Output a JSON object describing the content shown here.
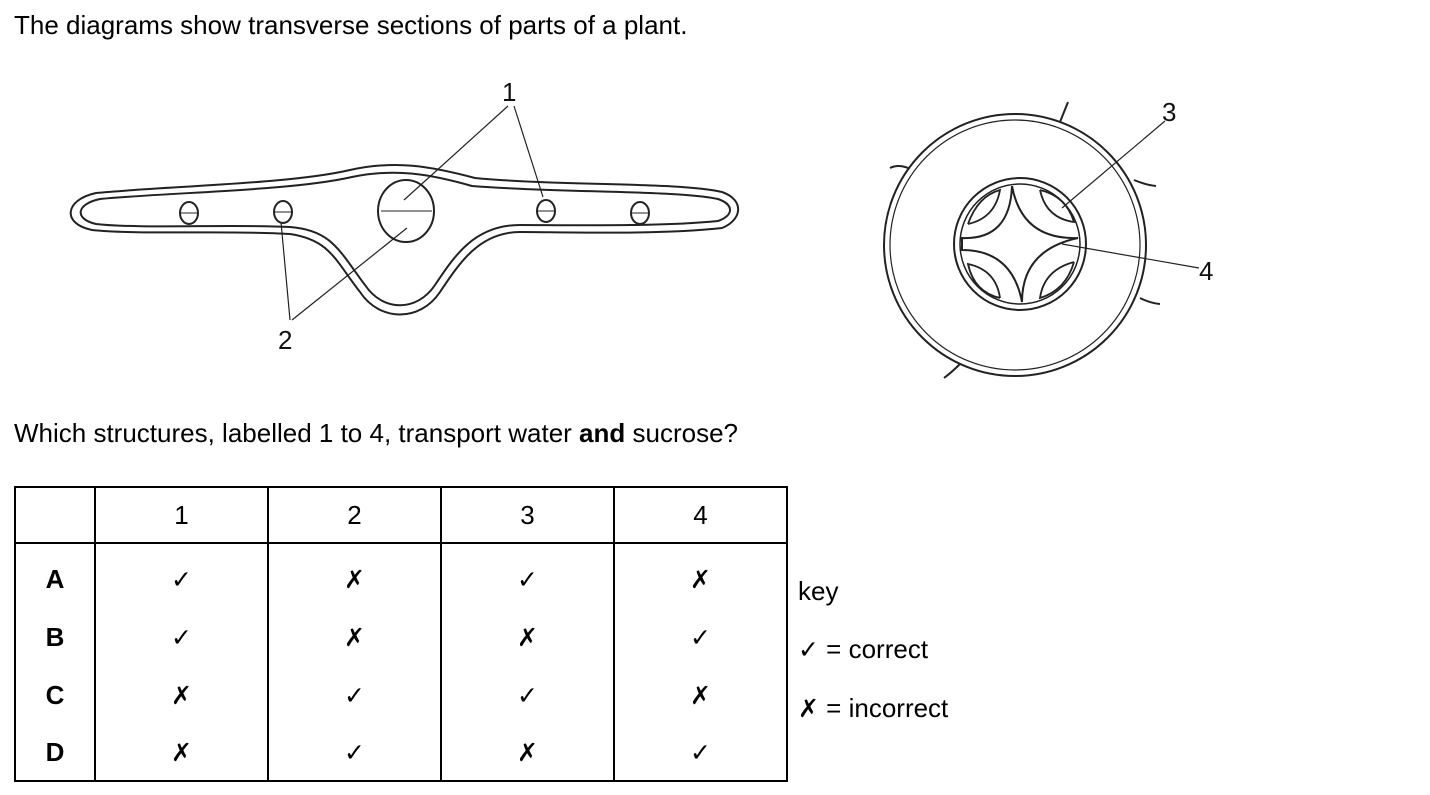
{
  "intro_text": "The diagrams show transverse sections of parts of a plant.",
  "question": {
    "before": "Which structures, labelled 1 to 4, transport water ",
    "bold": "and",
    "after": " sucrose?"
  },
  "diagram_labels": {
    "label_1": "1",
    "label_2": "2",
    "label_3": "3",
    "label_4": "4"
  },
  "table": {
    "header": [
      "",
      "1",
      "2",
      "3",
      "4"
    ],
    "rows": [
      {
        "letter": "A",
        "marks": [
          "✓",
          "✗",
          "✓",
          "✗"
        ]
      },
      {
        "letter": "B",
        "marks": [
          "✓",
          "✗",
          "✗",
          "✓"
        ]
      },
      {
        "letter": "C",
        "marks": [
          "✗",
          "✓",
          "✓",
          "✗"
        ]
      },
      {
        "letter": "D",
        "marks": [
          "✗",
          "✓",
          "✗",
          "✓"
        ]
      }
    ]
  },
  "key": {
    "title": "key",
    "correct_symbol": "✓",
    "correct_text": " = correct",
    "incorrect_symbol": "✗",
    "incorrect_text": " = incorrect"
  }
}
